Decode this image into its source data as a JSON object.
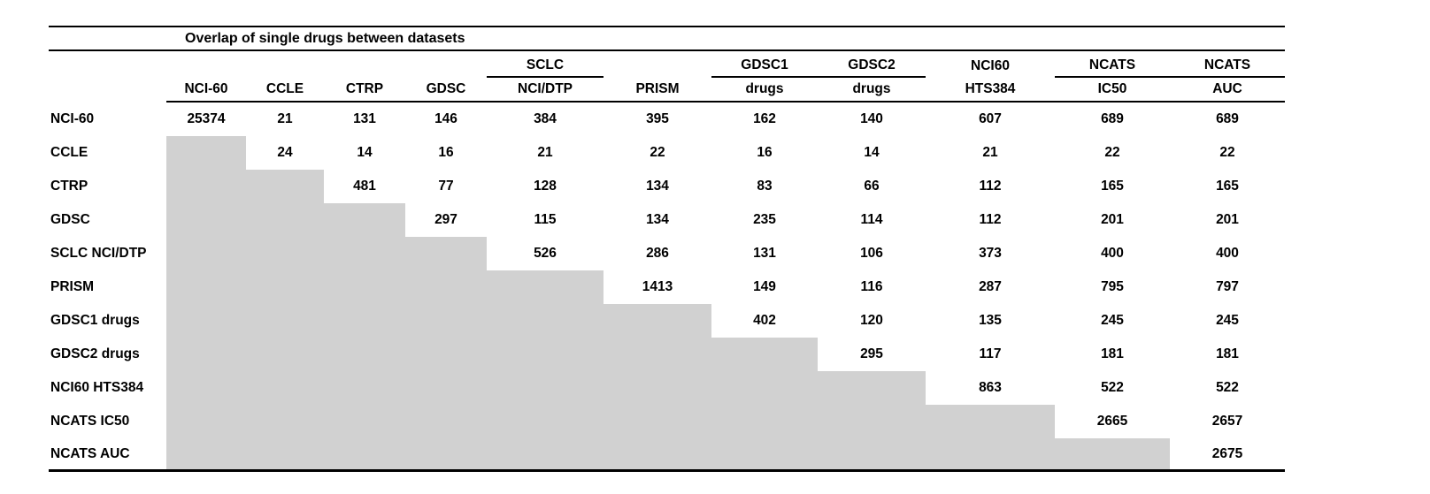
{
  "chart_data": {
    "type": "table",
    "title": "Overlap of single drugs between datasets",
    "description": "Pairwise overlap counts of single drugs between datasets; diagonal holds dataset totals; lower triangle is shaded gray (no values).",
    "columns": [
      {
        "top": "",
        "bottom": "NCI-60",
        "group_underline": false
      },
      {
        "top": "",
        "bottom": "CCLE",
        "group_underline": false
      },
      {
        "top": "",
        "bottom": "CTRP",
        "group_underline": false
      },
      {
        "top": "",
        "bottom": "GDSC",
        "group_underline": false
      },
      {
        "top": "SCLC",
        "bottom": "NCI/DTP",
        "group_underline": true
      },
      {
        "top": "",
        "bottom": "PRISM",
        "group_underline": false
      },
      {
        "top": "GDSC1",
        "bottom": "drugs",
        "group_underline": true
      },
      {
        "top": "GDSC2",
        "bottom": "drugs",
        "group_underline": true
      },
      {
        "top": "NCI60",
        "bottom": "HTS384",
        "group_underline": false
      },
      {
        "top": "NCATS",
        "bottom": "IC50",
        "group_underline": true
      },
      {
        "top": "NCATS",
        "bottom": "AUC",
        "group_underline": true
      }
    ],
    "row_labels": [
      "NCI-60",
      "CCLE",
      "CTRP",
      "GDSC",
      "SCLC NCI/DTP",
      "PRISM",
      "GDSC1 drugs",
      "GDSC2 drugs",
      "NCI60 HTS384",
      "NCATS IC50",
      "NCATS AUC"
    ],
    "matrix": [
      [
        25374,
        21,
        131,
        146,
        384,
        395,
        162,
        140,
        607,
        689,
        689
      ],
      [
        null,
        24,
        14,
        16,
        21,
        22,
        16,
        14,
        21,
        22,
        22
      ],
      [
        null,
        null,
        481,
        77,
        128,
        134,
        83,
        66,
        112,
        165,
        165
      ],
      [
        null,
        null,
        null,
        297,
        115,
        134,
        235,
        114,
        112,
        201,
        201
      ],
      [
        null,
        null,
        null,
        null,
        526,
        286,
        131,
        106,
        373,
        400,
        400
      ],
      [
        null,
        null,
        null,
        null,
        null,
        1413,
        149,
        116,
        287,
        795,
        797
      ],
      [
        null,
        null,
        null,
        null,
        null,
        null,
        402,
        120,
        135,
        245,
        245
      ],
      [
        null,
        null,
        null,
        null,
        null,
        null,
        null,
        295,
        117,
        181,
        181
      ],
      [
        null,
        null,
        null,
        null,
        null,
        null,
        null,
        null,
        863,
        522,
        522
      ],
      [
        null,
        null,
        null,
        null,
        null,
        null,
        null,
        null,
        null,
        2665,
        2657
      ],
      [
        null,
        null,
        null,
        null,
        null,
        null,
        null,
        null,
        null,
        null,
        2675
      ]
    ],
    "shading": "lower-triangle",
    "legend_position": "none",
    "grid": false,
    "colors": {
      "shaded_cell": "#d1d1d1",
      "rule": "#000000",
      "text": "#000000",
      "background": "#ffffff"
    }
  }
}
